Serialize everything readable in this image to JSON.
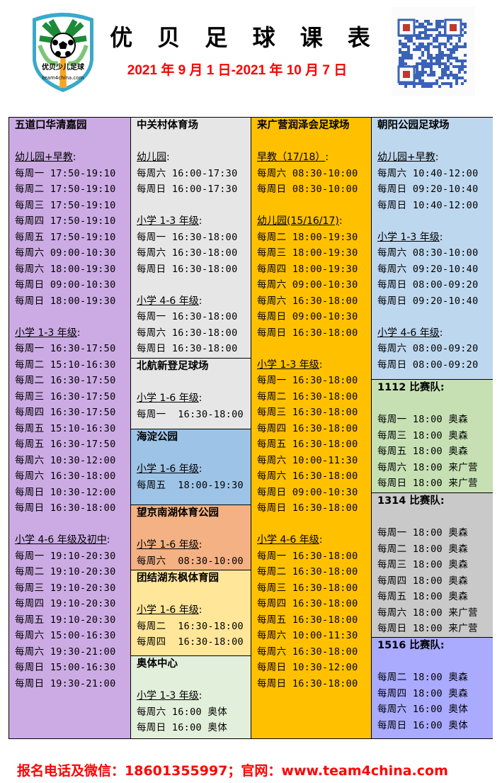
{
  "header": {
    "logo_text": "优贝少儿足球",
    "logo_url": "team4china.com",
    "title": "优 贝 足 球 课 表",
    "date_range": "2021 年 9 月 1 日-2021 年 10 月 7 日"
  },
  "colors": {
    "title": "#000000",
    "date": "#ff0000",
    "footer": "#ff0000"
  },
  "columns": [
    {
      "cells": [
        {
          "bg": "#ccabe4",
          "lines": [
            {
              "k": "t",
              "v": "五道口华清嘉园"
            },
            {
              "k": "b",
              "v": ""
            },
            {
              "k": "s",
              "v": "幼儿园+早教",
              "sfx": ":"
            },
            {
              "k": "e",
              "v": "每周一 17:50-19:10"
            },
            {
              "k": "e",
              "v": "每周二 17:50-19:10"
            },
            {
              "k": "e",
              "v": "每周三 17:50-19:10"
            },
            {
              "k": "e",
              "v": "每周四 17:50-19:10"
            },
            {
              "k": "e",
              "v": "每周五 17:50-19:10"
            },
            {
              "k": "e",
              "v": "每周六 09:00-10:30"
            },
            {
              "k": "e",
              "v": "每周六 18:00-19:30"
            },
            {
              "k": "e",
              "v": "每周日 09:00-10:30"
            },
            {
              "k": "e",
              "v": "每周日 18:00-19:30"
            },
            {
              "k": "b",
              "v": ""
            },
            {
              "k": "s",
              "v": "小学 1-3 年级",
              "sfx": ":"
            },
            {
              "k": "e",
              "v": "每周一 16:30-17:50"
            },
            {
              "k": "e",
              "v": "每周二 15:10-16:30"
            },
            {
              "k": "e",
              "v": "每周二 16:30-17:50"
            },
            {
              "k": "e",
              "v": "每周三 16:30-17:50"
            },
            {
              "k": "e",
              "v": "每周四 16:30-17:50"
            },
            {
              "k": "e",
              "v": "每周五 15:10-16:30"
            },
            {
              "k": "e",
              "v": "每周五 16:30-17:50"
            },
            {
              "k": "e",
              "v": "每周六 10:30-12:00"
            },
            {
              "k": "e",
              "v": "每周六 16:30-18:00"
            },
            {
              "k": "e",
              "v": "每周日 10:30-12:00"
            },
            {
              "k": "e",
              "v": "每周日 16:30-18:00"
            },
            {
              "k": "b",
              "v": ""
            },
            {
              "k": "s",
              "v": "小学 4-6 年级及初中",
              "sfx": ":"
            },
            {
              "k": "e",
              "v": "每周一 19:10-20:30"
            },
            {
              "k": "e",
              "v": "每周二 19:10-20:30"
            },
            {
              "k": "e",
              "v": "每周三 19:10-20:30"
            },
            {
              "k": "e",
              "v": "每周四 19:10-20:30"
            },
            {
              "k": "e",
              "v": "每周五 19:10-20:30"
            },
            {
              "k": "e",
              "v": "每周六 15:00-16:30"
            },
            {
              "k": "e",
              "v": "每周六 19:30-21:00"
            },
            {
              "k": "e",
              "v": "每周日 15:00-16:30"
            },
            {
              "k": "e",
              "v": "每周日 19:30-21:00"
            }
          ]
        }
      ]
    },
    {
      "cells": [
        {
          "bg": "#e6e6e6",
          "lines": [
            {
              "k": "t",
              "v": "中关村体育场"
            },
            {
              "k": "b",
              "v": ""
            },
            {
              "k": "s",
              "v": "幼儿园",
              "sfx": ":"
            },
            {
              "k": "e",
              "v": "每周六 16:00-17:30"
            },
            {
              "k": "e",
              "v": "每周日 16:00-17:30"
            },
            {
              "k": "b",
              "v": ""
            },
            {
              "k": "s",
              "v": "小学 1-3 年级",
              "sfx": ":"
            },
            {
              "k": "e",
              "v": "每周一 16:30-18:00"
            },
            {
              "k": "e",
              "v": "每周六 16:30-18:00"
            },
            {
              "k": "e",
              "v": "每周日 16:30-18:00"
            },
            {
              "k": "b",
              "v": ""
            },
            {
              "k": "s",
              "v": "小学 4-6 年级",
              "sfx": ":"
            },
            {
              "k": "e",
              "v": "每周一 16:30-18:00"
            },
            {
              "k": "e",
              "v": "每周六 16:30-18:00"
            },
            {
              "k": "e",
              "v": "每周日 16:30-18:00"
            }
          ]
        },
        {
          "bg": "#e6e6e6",
          "lines": [
            {
              "k": "t",
              "v": "北航新登足球场"
            },
            {
              "k": "b",
              "v": ""
            },
            {
              "k": "s",
              "v": "小学 1-6 年级",
              "sfx": ":"
            },
            {
              "k": "e",
              "v": "每周一  16:30-18:00"
            }
          ]
        },
        {
          "bg": "#9dc3e6",
          "lines": [
            {
              "k": "t",
              "v": "海淀公园"
            },
            {
              "k": "b",
              "v": ""
            },
            {
              "k": "s",
              "v": "小学 1-6 年级",
              "sfx": ":"
            },
            {
              "k": "e",
              "v": "每周五  18:00-19:30"
            }
          ]
        },
        {
          "bg": "#f4b183",
          "lines": [
            {
              "k": "t",
              "v": "望京南湖体育公园"
            },
            {
              "k": "b",
              "v": ""
            },
            {
              "k": "s",
              "v": "小学 1-6 年级",
              "sfx": ":"
            },
            {
              "k": "e",
              "v": "每周六  08:30-10:00"
            }
          ]
        },
        {
          "bg": "#ffe699",
          "lines": [
            {
              "k": "t",
              "v": "团结湖东枫体育园"
            },
            {
              "k": "b",
              "v": ""
            },
            {
              "k": "s",
              "v": "小学 1-6 年级",
              "sfx": ":"
            },
            {
              "k": "e",
              "v": "每周二  16:30-18:00"
            },
            {
              "k": "e",
              "v": "每周四  16:30-18:00"
            }
          ]
        },
        {
          "bg": "#e2efda",
          "lines": [
            {
              "k": "t",
              "v": "奥体中心"
            },
            {
              "k": "b",
              "v": ""
            },
            {
              "k": "s",
              "v": "小学 1-3 年级",
              "sfx": ":"
            },
            {
              "k": "e",
              "v": "每周六 16:00 奥体"
            },
            {
              "k": "e",
              "v": "每周日 16:00 奥体"
            }
          ]
        }
      ]
    },
    {
      "cells": [
        {
          "bg": "#ffc000",
          "lines": [
            {
              "k": "t",
              "v": "来广营润泽会足球场"
            },
            {
              "k": "b",
              "v": ""
            },
            {
              "k": "s",
              "v": "早教（17/18）",
              "sfx": ":"
            },
            {
              "k": "e",
              "v": "每周六 08:30-10:00"
            },
            {
              "k": "e",
              "v": "每周日 08:30-10:00"
            },
            {
              "k": "b",
              "v": ""
            },
            {
              "k": "s",
              "v": "幼儿园(15/16/17)",
              "sfx": ":"
            },
            {
              "k": "e",
              "v": "每周二 18:00-19:30"
            },
            {
              "k": "e",
              "v": "每周三 18:00-19:30"
            },
            {
              "k": "e",
              "v": "每周四 18:00-19:30"
            },
            {
              "k": "e",
              "v": "每周六 09:00-10:30"
            },
            {
              "k": "e",
              "v": "每周六 16:30-18:00"
            },
            {
              "k": "e",
              "v": "每周日 09:00-10:30"
            },
            {
              "k": "e",
              "v": "每周日 16:30-18:00"
            },
            {
              "k": "b",
              "v": ""
            },
            {
              "k": "s",
              "v": "小学 1-3 年级",
              "sfx": ":"
            },
            {
              "k": "e",
              "v": "每周一 16:30-18:00"
            },
            {
              "k": "e",
              "v": "每周二 16:30-18:00"
            },
            {
              "k": "e",
              "v": "每周三 16:30-18:00"
            },
            {
              "k": "e",
              "v": "每周四 16:30-18:00"
            },
            {
              "k": "e",
              "v": "每周五 16:30-18:00"
            },
            {
              "k": "e",
              "v": "每周六 10:00-11:30"
            },
            {
              "k": "e",
              "v": "每周六 16:30-18:00"
            },
            {
              "k": "e",
              "v": "每周日 09:00-10:30"
            },
            {
              "k": "e",
              "v": "每周日 16:30-18:00"
            },
            {
              "k": "b",
              "v": ""
            },
            {
              "k": "s",
              "v": "小学 4-6 年级",
              "sfx": ":"
            },
            {
              "k": "e",
              "v": "每周一 16:30-18:00"
            },
            {
              "k": "e",
              "v": "每周二 16:30-18:00"
            },
            {
              "k": "e",
              "v": "每周三 16:30-18:00"
            },
            {
              "k": "e",
              "v": "每周四 16:30-18:00"
            },
            {
              "k": "e",
              "v": "每周五 16:30-18:00"
            },
            {
              "k": "e",
              "v": "每周六 10:00-11:30"
            },
            {
              "k": "e",
              "v": "每周六 16:30-18:00"
            },
            {
              "k": "e",
              "v": "每周日 10:30-12:00"
            },
            {
              "k": "e",
              "v": "每周日 16:30-18:00"
            }
          ]
        }
      ]
    },
    {
      "cells": [
        {
          "bg": "#bdd7ee",
          "lines": [
            {
              "k": "t",
              "v": "朝阳公园足球场"
            },
            {
              "k": "b",
              "v": ""
            },
            {
              "k": "s",
              "v": "幼儿园+早教",
              "sfx": ":"
            },
            {
              "k": "e",
              "v": "每周六 10:40-12:00"
            },
            {
              "k": "e",
              "v": "每周日 09:20-10:40"
            },
            {
              "k": "e",
              "v": "每周日 10:40-12:00"
            },
            {
              "k": "b",
              "v": ""
            },
            {
              "k": "s",
              "v": "小学 1-3 年级",
              "sfx": ":"
            },
            {
              "k": "e",
              "v": "每周六 08:30-10:00"
            },
            {
              "k": "e",
              "v": "每周六 09:20-10:40"
            },
            {
              "k": "e",
              "v": "每周日 08:00-09:20"
            },
            {
              "k": "e",
              "v": "每周日 09:20-10:40"
            },
            {
              "k": "b",
              "v": ""
            },
            {
              "k": "s",
              "v": "小学 4-6 年级",
              "sfx": ":"
            },
            {
              "k": "e",
              "v": "每周六 08:00-09:20"
            },
            {
              "k": "e",
              "v": "每周日 08:00-09:20"
            }
          ]
        },
        {
          "bg": "#c6e0b4",
          "lines": [
            {
              "k": "t",
              "v": "1112 比赛队:"
            },
            {
              "k": "b",
              "v": ""
            },
            {
              "k": "e",
              "v": "每周一 18:00 奥森"
            },
            {
              "k": "e",
              "v": "每周三 18:00 奥森"
            },
            {
              "k": "e",
              "v": "每周五 18:00 奥森"
            },
            {
              "k": "e",
              "v": "每周六 18:00 来广营"
            },
            {
              "k": "e",
              "v": "每周日 18:00 来广营"
            }
          ]
        },
        {
          "bg": "#c9c9c9",
          "lines": [
            {
              "k": "t",
              "v": "1314 比赛队:"
            },
            {
              "k": "b",
              "v": ""
            },
            {
              "k": "e",
              "v": "每周一 18:00 奥森"
            },
            {
              "k": "e",
              "v": "每周二 18:00 奥森"
            },
            {
              "k": "e",
              "v": "每周三 18:00 奥森"
            },
            {
              "k": "e",
              "v": "每周四 18:00 奥森"
            },
            {
              "k": "e",
              "v": "每周五 18:00 奥森"
            },
            {
              "k": "e",
              "v": "每周六 18:00 来广营"
            },
            {
              "k": "e",
              "v": "每周日 18:00 来广营"
            }
          ]
        },
        {
          "bg": "#aaaaff",
          "lines": [
            {
              "k": "t",
              "v": "1516 比赛队:"
            },
            {
              "k": "b",
              "v": ""
            },
            {
              "k": "e",
              "v": "每周二 18:00 奥森"
            },
            {
              "k": "e",
              "v": "每周四 18:00 奥森"
            },
            {
              "k": "e",
              "v": "每周六 16:00 奥体"
            },
            {
              "k": "e",
              "v": "每周日 16:00 奥体"
            }
          ]
        }
      ]
    }
  ],
  "footer": {
    "text": "报名电话及微信：18601355997；官网：www.team4china.com"
  }
}
